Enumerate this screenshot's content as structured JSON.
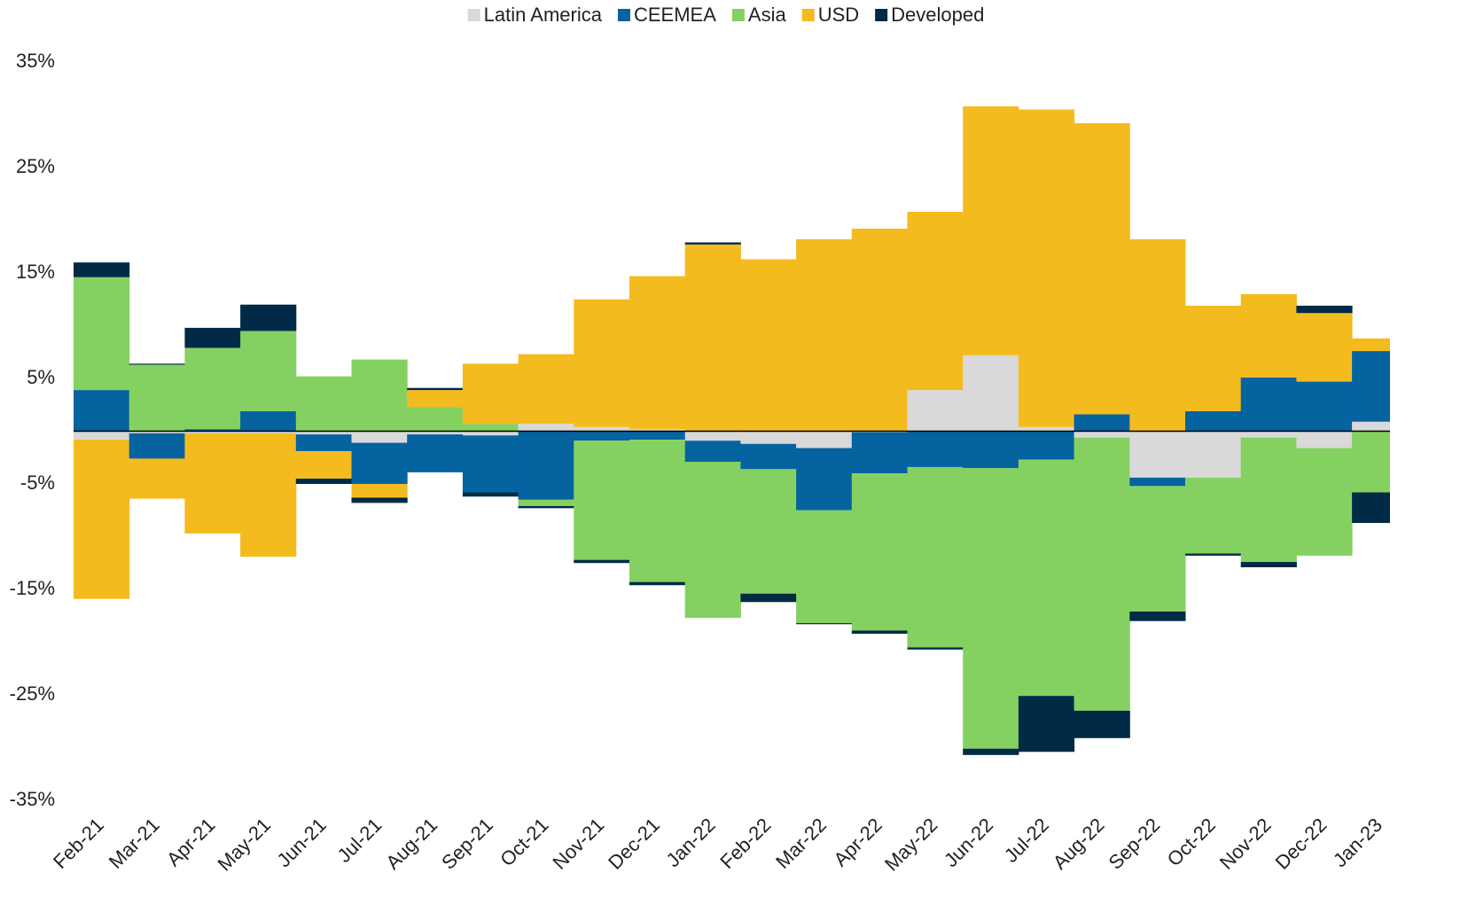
{
  "chart_data": {
    "type": "bar",
    "stacked": true,
    "categories": [
      "Feb-21",
      "Mar-21",
      "Apr-21",
      "May-21",
      "Jun-21",
      "Jul-21",
      "Aug-21",
      "Sep-21",
      "Oct-21",
      "Nov-21",
      "Dec-21",
      "Jan-22",
      "Feb-22",
      "Mar-22",
      "Apr-22",
      "May-22",
      "Jun-22",
      "Jul-22",
      "Aug-22",
      "Sep-22",
      "Oct-22",
      "Nov-22",
      "Dec-22",
      "Jan-23"
    ],
    "series": [
      {
        "name": "Latin America",
        "color": "#d9d9d9",
        "values": [
          -0.8,
          -0.2,
          -0.2,
          -0.2,
          -0.3,
          -1.1,
          -0.3,
          -0.4,
          0.7,
          0.4,
          0.2,
          -0.9,
          -1.2,
          -1.6,
          -0.1,
          3.9,
          7.2,
          0.4,
          -0.6,
          -4.4,
          -4.4,
          -0.6,
          -1.6,
          0.9
        ]
      },
      {
        "name": "CEEMEA",
        "color": "#0563a0",
        "values": [
          3.9,
          -2.4,
          0.2,
          1.9,
          -1.6,
          -3.9,
          -3.6,
          -5.4,
          -6.5,
          -0.9,
          -0.8,
          -2.0,
          -2.4,
          -5.9,
          -3.9,
          -3.4,
          -3.5,
          -2.7,
          1.6,
          -0.8,
          1.9,
          5.1,
          4.7,
          6.7
        ]
      },
      {
        "name": "Asia",
        "color": "#84d161",
        "values": [
          10.7,
          6.3,
          7.7,
          7.6,
          5.2,
          6.8,
          2.3,
          0.7,
          -0.6,
          -11.3,
          -13.5,
          -14.8,
          -11.8,
          -10.7,
          -14.9,
          -17.1,
          -26.6,
          -22.4,
          -25.9,
          -11.9,
          -7.2,
          -11.8,
          -10.2,
          -5.8
        ]
      },
      {
        "name": "USD",
        "color": "#f4bb1f",
        "values": [
          -15.1,
          -3.8,
          -9.5,
          -11.7,
          -2.6,
          -1.3,
          1.6,
          5.7,
          6.6,
          12.1,
          14.5,
          17.7,
          16.3,
          18.2,
          19.2,
          16.9,
          23.6,
          30.1,
          27.6,
          18.2,
          10.0,
          7.9,
          6.5,
          1.2
        ]
      },
      {
        "name": "Developed",
        "color": "#002a45",
        "values": [
          1.4,
          0.1,
          1.9,
          2.5,
          -0.5,
          -0.5,
          0.2,
          -0.4,
          -0.2,
          -0.3,
          -0.3,
          0.2,
          -0.8,
          -0.1,
          -0.3,
          -0.2,
          -0.6,
          -5.3,
          -2.6,
          -0.9,
          -0.2,
          -0.5,
          0.7,
          -2.9
        ]
      }
    ],
    "ylim": [
      -35,
      35
    ],
    "yticks": [
      {
        "value": 35,
        "label": "35%"
      },
      {
        "value": 25,
        "label": "25%"
      },
      {
        "value": 15,
        "label": "15%"
      },
      {
        "value": 5,
        "label": "5%"
      },
      {
        "value": -5,
        "label": "-5%"
      },
      {
        "value": -15,
        "label": "-15%"
      },
      {
        "value": -25,
        "label": "-25%"
      },
      {
        "value": -35,
        "label": "-35%"
      }
    ],
    "grid": false,
    "legend": "top"
  }
}
